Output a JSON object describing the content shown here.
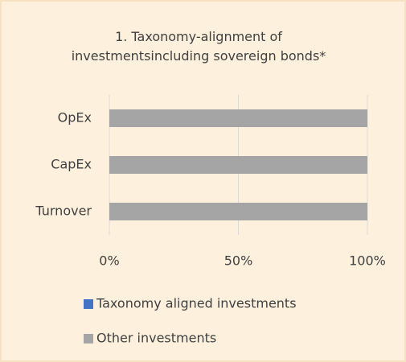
{
  "chart_data": {
    "type": "stacked-barh",
    "title": "1. Taxonomy-alignment of investmentsincluding sovereign bonds*",
    "categories": [
      "OpEx",
      "CapEx",
      "Turnover"
    ],
    "series": [
      {
        "name": "Taxonomy aligned investments",
        "color": "#4472c4",
        "values": [
          0,
          0,
          0
        ]
      },
      {
        "name": "Other investments",
        "color": "#a5a5a5",
        "values": [
          100,
          100,
          100
        ]
      }
    ],
    "xlim": [
      0,
      100
    ],
    "xticks": [
      {
        "value": 0,
        "label": "0%"
      },
      {
        "value": 50,
        "label": "50%"
      },
      {
        "value": 100,
        "label": "100%"
      }
    ],
    "grid": true
  }
}
